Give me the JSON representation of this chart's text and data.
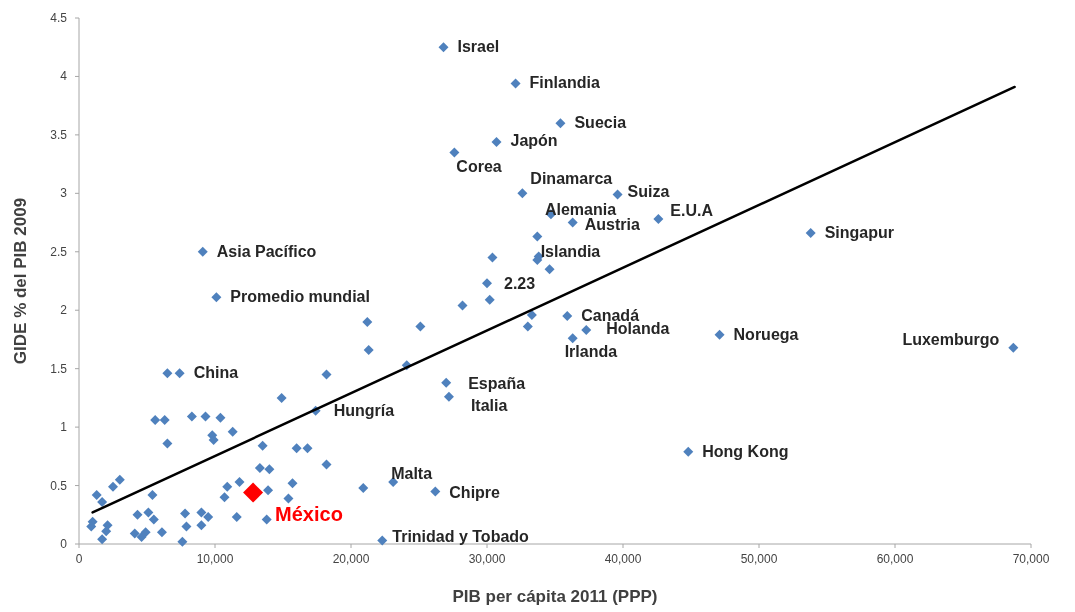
{
  "chart_data": {
    "type": "scatter",
    "xlabel": "PIB per cápita 2011 (PPP)",
    "ylabel": "GIDE % del PIB 2009",
    "marker": "diamond",
    "grid": false,
    "xlim": [
      0,
      70000
    ],
    "xticks": [
      0,
      {
        "value": 10000,
        "label": "10,000"
      },
      {
        "value": 20000,
        "label": "20,000"
      },
      {
        "value": 30000,
        "label": "30,000"
      },
      {
        "value": 40000,
        "label": "40,000"
      },
      {
        "value": 50000,
        "label": "50,000"
      },
      {
        "value": 60000,
        "label": "60,000"
      },
      {
        "value": 70000,
        "label": "70,000"
      }
    ],
    "ylim": [
      0,
      4.5
    ],
    "yticks": [
      0,
      0.5,
      1,
      1.5,
      2,
      2.5,
      3,
      3.5,
      4,
      4.5
    ],
    "series": [
      {
        "color": "#4f81bd",
        "x": [
          26800,
          32100,
          35400,
          30700,
          27600,
          32600,
          39600,
          34700,
          36300,
          42600,
          53800,
          33700,
          33800,
          33700,
          34600,
          30400,
          30000,
          30200,
          28200,
          25100,
          33300,
          33000,
          35900,
          37300,
          36300,
          47100,
          68700,
          44800,
          9100,
          10100,
          21200,
          21300,
          18200,
          6500,
          7400,
          14900,
          17400,
          5600,
          6300,
          8300,
          9300,
          10400,
          6500,
          9800,
          9900,
          11300,
          13500,
          16000,
          16800,
          18200,
          13300,
          14000,
          20900,
          11800,
          10900,
          10700,
          13900,
          15700,
          15400,
          11600,
          13800,
          3000,
          2500,
          1300,
          1700,
          5400,
          1000,
          900,
          2100,
          2000,
          1700,
          4300,
          5100,
          5500,
          4100,
          4600,
          4900,
          6100,
          7800,
          7900,
          7600,
          9000,
          9500,
          9000,
          23100,
          26200,
          22300,
          27000,
          27200,
          24100
        ],
        "values": [
          4.25,
          3.94,
          3.6,
          3.44,
          3.35,
          3.0,
          2.99,
          2.82,
          2.75,
          2.78,
          2.66,
          2.63,
          2.46,
          2.43,
          2.35,
          2.45,
          2.23,
          2.09,
          2.04,
          1.86,
          1.96,
          1.86,
          1.95,
          1.83,
          1.76,
          1.79,
          1.68,
          0.79,
          2.5,
          2.11,
          1.9,
          1.66,
          1.45,
          1.46,
          1.46,
          1.25,
          1.14,
          1.06,
          1.06,
          1.09,
          1.09,
          1.08,
          0.86,
          0.93,
          0.89,
          0.96,
          0.84,
          0.82,
          0.82,
          0.68,
          0.65,
          0.64,
          0.48,
          0.53,
          0.49,
          0.4,
          0.46,
          0.52,
          0.39,
          0.23,
          0.21,
          0.55,
          0.49,
          0.42,
          0.36,
          0.42,
          0.19,
          0.15,
          0.16,
          0.11,
          0.04,
          0.25,
          0.27,
          0.21,
          0.09,
          0.06,
          0.1,
          0.1,
          0.26,
          0.15,
          0.02,
          0.27,
          0.23,
          0.16,
          0.53,
          0.45,
          0.03,
          1.38,
          1.26,
          1.53
        ]
      },
      {
        "name": "México",
        "color": "#ff0000",
        "x": [
          12800
        ],
        "values": [
          0.44
        ]
      },
      {
        "type": "line",
        "marker": "none",
        "color": "#000000",
        "x": [
          1000,
          68800
        ],
        "values": [
          0.27,
          3.91
        ]
      }
    ],
    "annotations": [
      {
        "text": "Israel",
        "x": 26800,
        "y": 4.25
      },
      {
        "text": "Finlandia",
        "x": 32100,
        "y": 3.94
      },
      {
        "text": "Suecia",
        "x": 35400,
        "y": 3.6
      },
      {
        "text": "Japón",
        "x": 30700,
        "y": 3.44
      },
      {
        "text": "Corea",
        "x": 27600,
        "y": 3.35
      },
      {
        "text": "Dinamarca",
        "x": 32600,
        "y": 3.0
      },
      {
        "text": "Suiza",
        "x": 39600,
        "y": 2.99
      },
      {
        "text": "Alemania",
        "x": 34700,
        "y": 2.82
      },
      {
        "text": "Austria",
        "x": 36300,
        "y": 2.75
      },
      {
        "text": "E.U.A",
        "x": 42600,
        "y": 2.78
      },
      {
        "text": "Singapur",
        "x": 53800,
        "y": 2.66
      },
      {
        "text": "Islandia",
        "x": 33800,
        "y": 2.46
      },
      {
        "text": "2.23",
        "x": 30000,
        "y": 2.23
      },
      {
        "text": "Asia Pacífico",
        "x": 9100,
        "y": 2.5
      },
      {
        "text": "Promedio mundial",
        "x": 10100,
        "y": 2.11
      },
      {
        "text": "Canadá",
        "x": 35900,
        "y": 1.95
      },
      {
        "text": "Holanda",
        "x": 37300,
        "y": 1.83
      },
      {
        "text": "Irlanda",
        "x": 36300,
        "y": 1.76
      },
      {
        "text": "Noruega",
        "x": 47100,
        "y": 1.79
      },
      {
        "text": "Luxemburgo",
        "x": 68700,
        "y": 1.68
      },
      {
        "text": "China",
        "x": 7400,
        "y": 1.46
      },
      {
        "text": "España",
        "x": 27000,
        "y": 1.38
      },
      {
        "text": "Italia",
        "x": 27200,
        "y": 1.26
      },
      {
        "text": "Hungría",
        "x": 17400,
        "y": 1.14
      },
      {
        "text": "Hong Kong",
        "x": 44800,
        "y": 0.79
      },
      {
        "text": "Malta",
        "x": 23100,
        "y": 0.53
      },
      {
        "text": "Chipre",
        "x": 26200,
        "y": 0.45
      },
      {
        "text": "Trinidad y Tobado",
        "x": 22300,
        "y": 0.03
      }
    ]
  }
}
